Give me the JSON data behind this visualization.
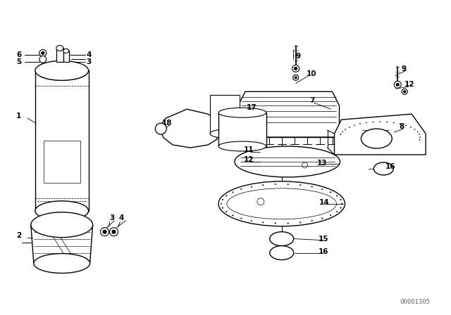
{
  "background_color": "#ffffff",
  "line_color": "#000000",
  "label_color": "#000000",
  "figure_width": 6.4,
  "figure_height": 4.48,
  "dpi": 100,
  "watermark": "00001305",
  "watermark_fontsize": 6.5
}
